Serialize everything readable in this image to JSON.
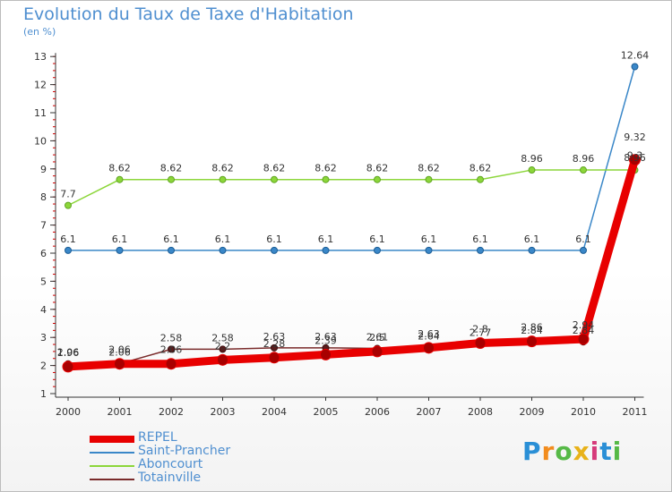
{
  "header": {
    "title": "Evolution du Taux de Taxe d'Habitation",
    "unit": "(en %)"
  },
  "brand": {
    "logo": "Proxiti"
  },
  "chart_data": {
    "type": "line",
    "title": "Evolution du Taux de Taxe d'Habitation",
    "ylabel": "(en %)",
    "xlabel": "",
    "categories": [
      "2000",
      "2001",
      "2002",
      "2003",
      "2004",
      "2005",
      "2006",
      "2007",
      "2008",
      "2009",
      "2010",
      "2011"
    ],
    "ylim": [
      1,
      13
    ],
    "yticks": [
      1,
      2,
      3,
      4,
      5,
      6,
      7,
      8,
      9,
      10,
      11,
      12,
      13
    ],
    "grid": false,
    "legend": "bottom-left",
    "series": [
      {
        "name": "REPEL",
        "color": "#e80000",
        "values": [
          1.96,
          2.06,
          2.06,
          2.2,
          2.28,
          2.39,
          2.5,
          2.63,
          2.8,
          2.86,
          2.94,
          9.32
        ],
        "labels": [
          "1.96",
          "2.06",
          "2.06",
          "2.2",
          "2.28",
          "2.39",
          "2.5",
          "2.63",
          "2.8",
          "2.86",
          "2.94",
          "9.32"
        ]
      },
      {
        "name": "Saint-Prancher",
        "color": "#3a87c8",
        "values": [
          6.1,
          6.1,
          6.1,
          6.1,
          6.1,
          6.1,
          6.1,
          6.1,
          6.1,
          6.1,
          6.1,
          12.64
        ],
        "labels": [
          "6.1",
          "6.1",
          "6.1",
          "6.1",
          "6.1",
          "6.1",
          "6.1",
          "6.1",
          "6.1",
          "6.1",
          "6.1",
          "12.64"
        ]
      },
      {
        "name": "Aboncourt",
        "color": "#8cd63a",
        "values": [
          7.7,
          8.62,
          8.62,
          8.62,
          8.62,
          8.62,
          8.62,
          8.62,
          8.62,
          8.96,
          8.96,
          8.96
        ],
        "labels": [
          "7.7",
          "8.62",
          "8.62",
          "8.62",
          "8.62",
          "8.62",
          "8.62",
          "8.62",
          "8.62",
          "8.96",
          "8.96",
          "8.96"
        ]
      },
      {
        "name": "Totainville",
        "color": "#7a2b2b",
        "values": [
          2.06,
          2.06,
          2.58,
          2.58,
          2.63,
          2.63,
          2.61,
          2.64,
          2.77,
          2.84,
          2.84,
          9.3
        ],
        "labels": [
          "2.06",
          "2.06",
          "2.58",
          "2.58",
          "2.63",
          "2.63",
          "2.61",
          "2.64",
          "2.77",
          "2.84",
          "2.84",
          "9.3"
        ]
      }
    ]
  }
}
